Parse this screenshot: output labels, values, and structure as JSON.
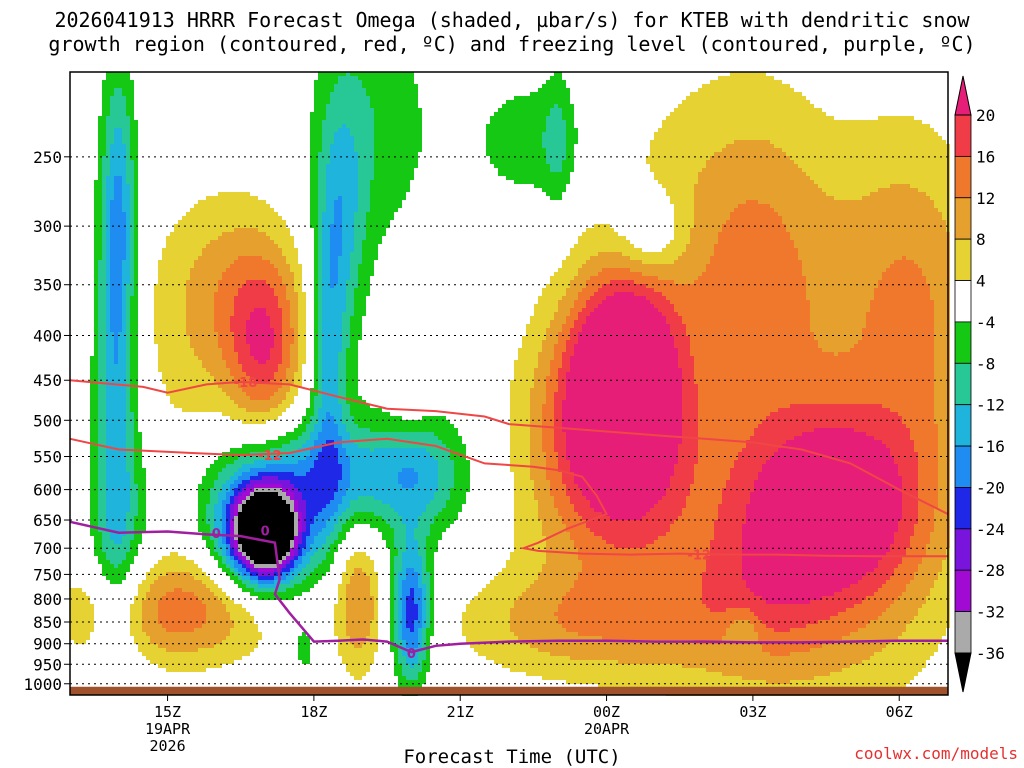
{
  "title": {
    "line1": "2026041913 HRRR Forecast Omega (shaded, µbar/s) for KTEB with dendritic snow",
    "line2": "growth region (contoured, red, ºC) and freezing level (contoured, purple, ºC)"
  },
  "x_axis_title": "Forecast Time (UTC)",
  "credit": "coolwx.com/models",
  "chart_data": {
    "type": "heatmap",
    "title": "2026041913 HRRR Forecast Omega (shaded, µbar/s) for KTEB with dendritic snow growth region (contoured, red, ºC) and freezing level (contoured, purple, ºC)",
    "xlabel": "Forecast Time (UTC)",
    "ylabel": "",
    "y_scale": "log (pressure, inverted)",
    "y_ticks": [
      250,
      300,
      350,
      400,
      450,
      500,
      550,
      600,
      650,
      700,
      750,
      800,
      850,
      900,
      950,
      1000
    ],
    "x_ticks": [
      {
        "label": "15Z",
        "sub1": "19APR",
        "sub2": "2026",
        "hour": 15
      },
      {
        "label": "18Z",
        "sub1": "",
        "sub2": "",
        "hour": 18
      },
      {
        "label": "21Z",
        "sub1": "",
        "sub2": "",
        "hour": 21
      },
      {
        "label": "00Z",
        "sub1": "20APR",
        "sub2": "",
        "hour": 24
      },
      {
        "label": "03Z",
        "sub1": "",
        "sub2": "",
        "hour": 27
      },
      {
        "label": "06Z",
        "sub1": "",
        "sub2": "",
        "hour": 30
      }
    ],
    "x_range_hours": [
      13,
      31
    ],
    "y_range_hpa": [
      200,
      1030
    ],
    "grid": "dotted horizontal",
    "colorbar": {
      "labels": [
        "20",
        "16",
        "12",
        "8",
        "4",
        "-4",
        "-8",
        "-12",
        "-16",
        "-20",
        "-24",
        "-28",
        "-32",
        "-36"
      ],
      "colors": [
        "#e61e78",
        "#f03c46",
        "#f0782d",
        "#e6a02d",
        "#e6d232",
        "#ffffff",
        "#14c814",
        "#28c896",
        "#1eb4dc",
        "#1e8cf0",
        "#1e28e6",
        "#7814dc",
        "#a00ad2",
        "#aaaaaa",
        "#000000"
      ]
    },
    "contours": [
      {
        "name": "-18",
        "kind": "dendritic",
        "color": "#f04646",
        "points": [
          [
            13,
            450
          ],
          [
            14.5,
            458
          ],
          [
            15,
            465
          ],
          [
            15.8,
            455
          ],
          [
            16.5,
            452
          ],
          [
            17.5,
            455
          ],
          [
            18.5,
            470
          ],
          [
            19.5,
            485
          ],
          [
            20.5,
            488
          ],
          [
            21.5,
            495
          ],
          [
            22,
            505
          ],
          [
            23,
            510
          ],
          [
            24,
            515
          ],
          [
            25,
            520
          ],
          [
            26,
            525
          ],
          [
            27,
            530
          ],
          [
            28,
            540
          ],
          [
            29,
            560
          ],
          [
            30,
            600
          ],
          [
            31,
            640
          ]
        ]
      },
      {
        "name": "-12",
        "kind": "dendritic",
        "color": "#f04646",
        "points": [
          [
            13,
            525
          ],
          [
            14,
            540
          ],
          [
            15.5,
            545
          ],
          [
            16.5,
            548
          ],
          [
            17.5,
            545
          ],
          [
            18.5,
            530
          ],
          [
            19.5,
            525
          ],
          [
            20.5,
            535
          ],
          [
            21.5,
            560
          ],
          [
            22.5,
            565
          ],
          [
            23,
            570
          ],
          [
            23.5,
            580
          ],
          [
            23.8,
            610
          ],
          [
            24,
            640
          ],
          [
            23.2,
            665
          ],
          [
            22.6,
            690
          ],
          [
            22.3,
            700
          ],
          [
            22.6,
            705
          ],
          [
            23.5,
            710
          ],
          [
            24.5,
            712
          ],
          [
            25.5,
            710
          ],
          [
            26.5,
            712
          ],
          [
            27.5,
            712
          ],
          [
            28.5,
            714
          ],
          [
            29.5,
            715
          ],
          [
            31,
            715
          ]
        ]
      },
      {
        "name": "freezing",
        "kind": "freezing",
        "color": "#a01ea0",
        "points": [
          [
            13,
            653
          ],
          [
            14,
            672
          ],
          [
            15,
            670
          ],
          [
            15.8,
            675
          ],
          [
            16.5,
            678
          ],
          [
            17.2,
            690
          ],
          [
            17.3,
            760
          ],
          [
            17.2,
            790
          ],
          [
            17.5,
            830
          ],
          [
            18,
            895
          ],
          [
            18.5,
            893
          ],
          [
            19,
            890
          ],
          [
            19.5,
            895
          ],
          [
            20,
            920
          ],
          [
            20.5,
            905
          ],
          [
            21,
            900
          ],
          [
            22,
            895
          ],
          [
            23,
            893
          ],
          [
            24,
            893
          ],
          [
            25,
            895
          ],
          [
            26,
            895
          ],
          [
            27,
            897
          ],
          [
            28,
            897
          ],
          [
            29,
            895
          ],
          [
            30,
            893
          ],
          [
            31,
            893
          ]
        ]
      }
    ],
    "contour_labels": [
      {
        "text": "-18",
        "hour": 16.6,
        "hpa": 452
      },
      {
        "text": "-12",
        "hour": 17.1,
        "hpa": 548
      },
      {
        "text": "-12",
        "hour": 25.9,
        "hpa": 712
      },
      {
        "text": "0",
        "hour": 16.0,
        "hpa": 673
      },
      {
        "text": "0",
        "hour": 20.0,
        "hpa": 922
      },
      {
        "text": "0",
        "hour": 17.0,
        "hpa": 668
      }
    ]
  }
}
